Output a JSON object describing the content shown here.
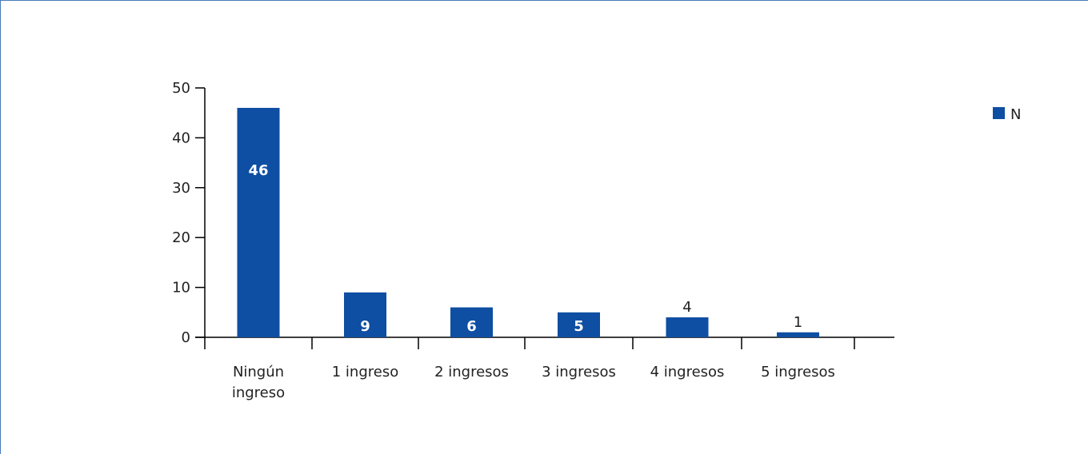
{
  "chart_data": {
    "type": "bar",
    "categories": [
      [
        "Ningún",
        "ingreso"
      ],
      [
        "1 ingreso"
      ],
      [
        "2 ingresos"
      ],
      [
        "3 ingresos"
      ],
      [
        "4 ingresos"
      ],
      [
        "5 ingresos"
      ]
    ],
    "series": [
      {
        "name": "N",
        "values": [
          46,
          9,
          6,
          5,
          4,
          1
        ]
      }
    ],
    "data_labels": [
      "46",
      "9",
      "6",
      "5",
      "4",
      "1"
    ],
    "ylim": [
      0,
      50
    ],
    "yticks": [
      0,
      10,
      20,
      30,
      40,
      50
    ],
    "grid": false,
    "legend": "right",
    "colors": {
      "bar": "#0e4ea3"
    }
  }
}
